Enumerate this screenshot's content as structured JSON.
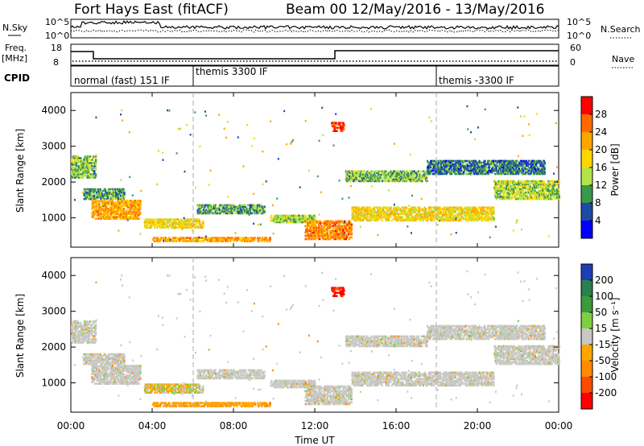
{
  "header": {
    "title": "Fort Hays East (fitACF)",
    "beam_info": "Beam 00  12/May/2016 - 13/May/2016"
  },
  "noise_panel": {
    "left_label": "N.Sky",
    "right_label": "N.Search",
    "left_ticks": [
      "10^5",
      "10^0"
    ],
    "right_ticks": [
      "10^5",
      "10^0"
    ]
  },
  "freq_panel": {
    "left_label_line1": "Freq.",
    "left_label_line2": "[MHz]",
    "left_ticks": [
      "18",
      "8"
    ],
    "right_ticks": [
      "60",
      "0"
    ],
    "right_label": "Nave"
  },
  "cpid_panel": {
    "label": "CPID",
    "segments": [
      {
        "label": "normal (fast) 151 IF",
        "start_hour": 0
      },
      {
        "label": "themis 3300 IF",
        "start_hour": 6
      },
      {
        "label": "themis -3300 IF",
        "start_hour": 18
      }
    ]
  },
  "axes": {
    "x_ticks": [
      "00:00",
      "04:00",
      "08:00",
      "12:00",
      "16:00",
      "20:00",
      "00:00"
    ],
    "x_label": "Time UT",
    "y_label": "Slant Range [km]",
    "y_ticks": [
      "1000",
      "2000",
      "3000",
      "4000"
    ]
  },
  "power_colorbar": {
    "label": "Power [dB]",
    "ticks": [
      "28",
      "24",
      "20",
      "16",
      "12",
      "8",
      "4"
    ],
    "colors": [
      "#ff0000",
      "#ff6a00",
      "#ffa500",
      "#ffd700",
      "#b3e34a",
      "#3a9a4a",
      "#1e4aa5",
      "#0000ff"
    ]
  },
  "velocity_colorbar": {
    "label": "Velocity [m s⁻¹]",
    "ticks": [
      "200",
      "100",
      "50",
      "15",
      "-15",
      "-50",
      "-100",
      "-200"
    ],
    "colors": [
      "#1e3fb3",
      "#2a7f4f",
      "#3c9a3c",
      "#7fd040",
      "#c8c8c4",
      "#ffa500",
      "#ff8c00",
      "#ff4b00",
      "#ff0000"
    ]
  },
  "chart_data": {
    "type": "heatmap",
    "x_range_hours": [
      0,
      24
    ],
    "y_range_km": [
      180,
      4500
    ],
    "ground_scatter_color": "#c8c8c4",
    "scatter_regions": [
      {
        "t0": 0.0,
        "t1": 1.2,
        "r0": 2100,
        "r1": 2700,
        "power": 12,
        "vel": "gs"
      },
      {
        "t0": 0.6,
        "t1": 2.6,
        "r0": 1500,
        "r1": 1800,
        "power": 10,
        "vel": "gs"
      },
      {
        "t0": 1.0,
        "t1": 3.4,
        "r0": 950,
        "r1": 1450,
        "power": 22,
        "vel": "gs"
      },
      {
        "t0": 3.6,
        "t1": 6.5,
        "r0": 700,
        "r1": 950,
        "power": 18,
        "vel": "neg_slow"
      },
      {
        "t0": 6.2,
        "t1": 9.5,
        "r0": 1100,
        "r1": 1350,
        "power": 10,
        "vel": "gs"
      },
      {
        "t0": 4.0,
        "t1": 9.8,
        "r0": 320,
        "r1": 420,
        "power": 22,
        "vel": "neg"
      },
      {
        "t0": 9.8,
        "t1": 12.0,
        "r0": 850,
        "r1": 1050,
        "power": 14,
        "vel": "gs"
      },
      {
        "t0": 11.5,
        "t1": 13.8,
        "r0": 380,
        "r1": 900,
        "power": 24,
        "vel": "gs"
      },
      {
        "t0": 12.8,
        "t1": 13.4,
        "r0": 3400,
        "r1": 3650,
        "power": 28,
        "vel": "neg_fast"
      },
      {
        "t0": 13.8,
        "t1": 20.8,
        "r0": 900,
        "r1": 1300,
        "power": 18,
        "vel": "gs"
      },
      {
        "t0": 13.5,
        "t1": 17.5,
        "r0": 2000,
        "r1": 2300,
        "power": 12,
        "vel": "gs"
      },
      {
        "t0": 17.5,
        "t1": 23.3,
        "r0": 2200,
        "r1": 2600,
        "power": 8,
        "vel": "gs"
      },
      {
        "t0": 20.8,
        "t1": 24.0,
        "r0": 1500,
        "r1": 2000,
        "power": 14,
        "vel": "gs"
      }
    ]
  }
}
